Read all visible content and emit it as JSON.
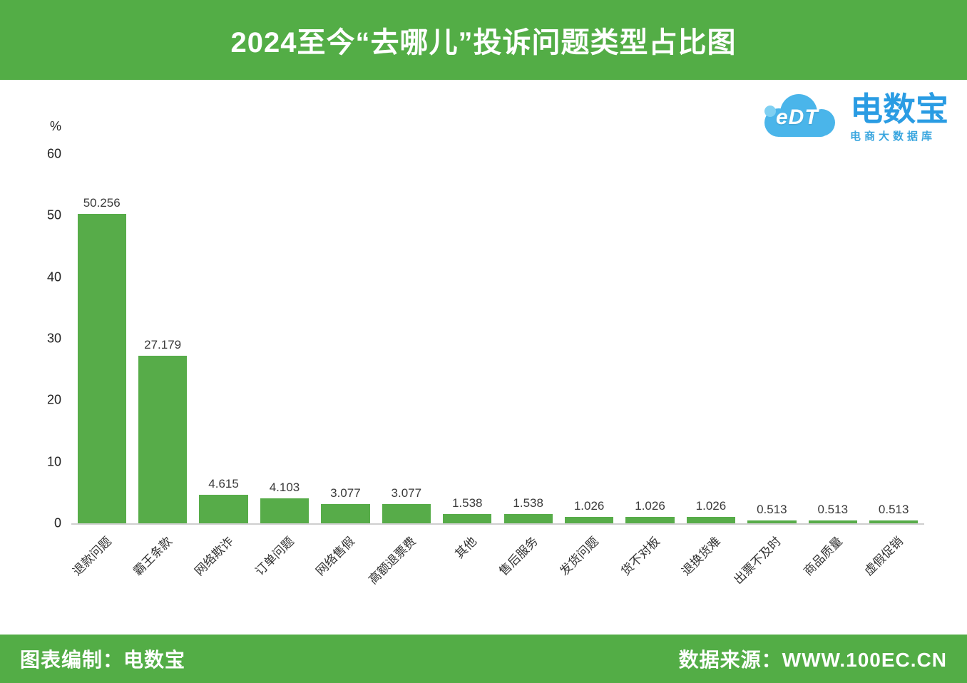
{
  "header": {
    "title": "2024至今“去哪儿”投诉问题类型占比图"
  },
  "logo": {
    "cloud_text": "eDT",
    "brand": "电数宝",
    "subtitle": "电商大数据库",
    "brand_color": "#2a9ce3",
    "cloud_color": "#4ab5ea"
  },
  "chart_data": {
    "type": "bar",
    "title": "2024至今“去哪儿”投诉问题类型占比图",
    "xlabel": "",
    "ylabel": "%",
    "ylim": [
      0,
      60
    ],
    "yticks": [
      0,
      10,
      20,
      30,
      40,
      50,
      60
    ],
    "grid": false,
    "legend": "none",
    "bar_color": "#57ac49",
    "categories": [
      "退款问题",
      "霸王条款",
      "网络欺诈",
      "订单问题",
      "网络售假",
      "高额退票费",
      "其他",
      "售后服务",
      "发货问题",
      "货不对板",
      "退换货难",
      "出票不及时",
      "商品质量",
      "虚假促销"
    ],
    "values": [
      50.256,
      27.179,
      4.615,
      4.103,
      3.077,
      3.077,
      1.538,
      1.538,
      1.026,
      1.026,
      1.026,
      0.513,
      0.513,
      0.513
    ]
  },
  "footer": {
    "left": "图表编制：电数宝",
    "right": "数据来源：WWW.100EC.CN"
  }
}
